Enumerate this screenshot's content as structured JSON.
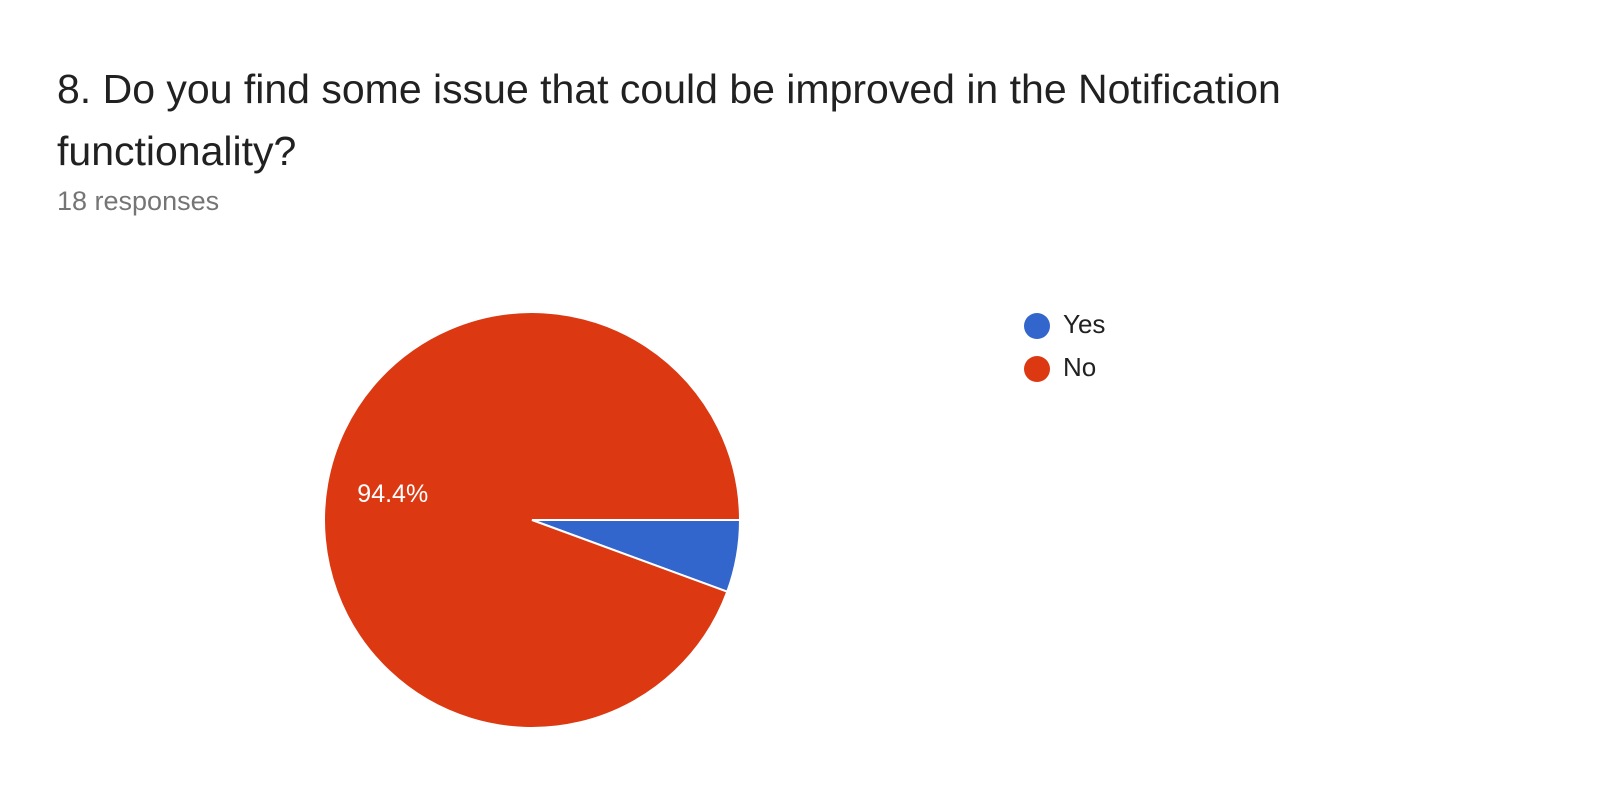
{
  "chart_data": {
    "type": "pie",
    "title": "8. Do you find some issue that could be improved in the Notification functionality?",
    "subtitle": "18 responses",
    "categories": [
      "Yes",
      "No"
    ],
    "values": [
      5.6,
      94.4
    ],
    "value_labels": [
      null,
      "94.4%"
    ],
    "colors": [
      "#3366cc",
      "#dc3912"
    ],
    "legend": "right"
  }
}
